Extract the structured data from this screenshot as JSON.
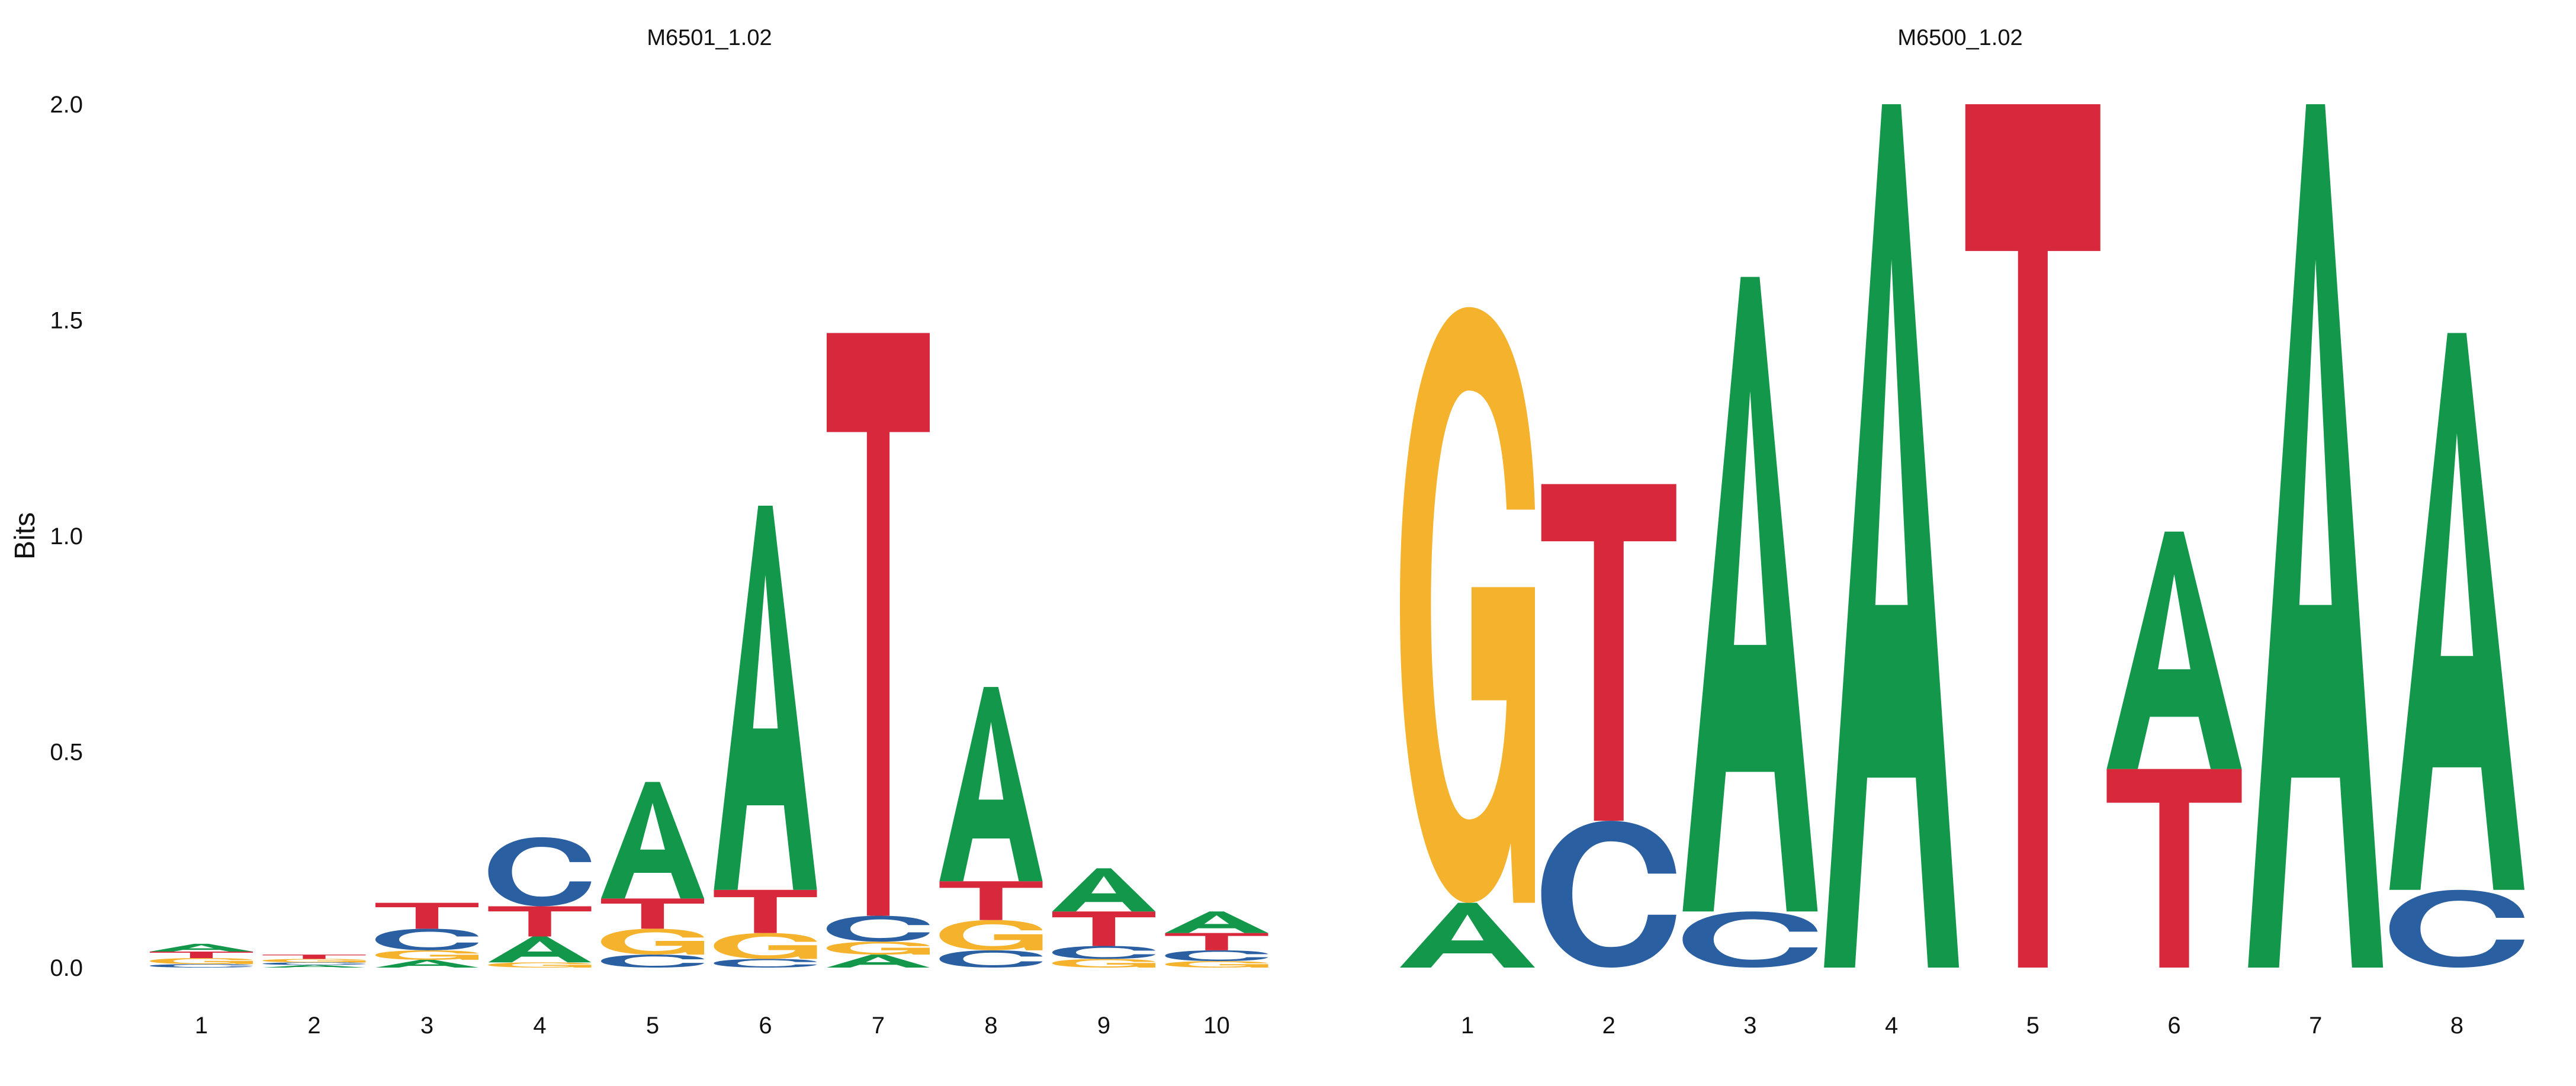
{
  "chart_data": [
    {
      "type": "sequence-logo",
      "title": "M6501_1.02",
      "ylabel": "Bits",
      "ylim": [
        0,
        2.0
      ],
      "yticks": [
        "0.0",
        "0.5",
        "1.0",
        "1.5",
        "2.0"
      ],
      "positions": [
        {
          "label": "1",
          "stack": [
            {
              "letter": "C",
              "bits": 0.008
            },
            {
              "letter": "G",
              "bits": 0.014
            },
            {
              "letter": "T",
              "bits": 0.015
            },
            {
              "letter": "A",
              "bits": 0.018
            }
          ]
        },
        {
          "label": "2",
          "stack": [
            {
              "letter": "A",
              "bits": 0.006
            },
            {
              "letter": "C",
              "bits": 0.006
            },
            {
              "letter": "G",
              "bits": 0.008
            },
            {
              "letter": "T",
              "bits": 0.01
            }
          ]
        },
        {
          "label": "3",
          "stack": [
            {
              "letter": "A",
              "bits": 0.018
            },
            {
              "letter": "G",
              "bits": 0.022
            },
            {
              "letter": "C",
              "bits": 0.05
            },
            {
              "letter": "T",
              "bits": 0.06
            }
          ]
        },
        {
          "label": "4",
          "stack": [
            {
              "letter": "G",
              "bits": 0.012
            },
            {
              "letter": "A",
              "bits": 0.06
            },
            {
              "letter": "T",
              "bits": 0.07
            },
            {
              "letter": "C",
              "bits": 0.16
            }
          ]
        },
        {
          "label": "5",
          "stack": [
            {
              "letter": "C",
              "bits": 0.03
            },
            {
              "letter": "G",
              "bits": 0.06
            },
            {
              "letter": "T",
              "bits": 0.07
            },
            {
              "letter": "A",
              "bits": 0.27
            }
          ]
        },
        {
          "label": "6",
          "stack": [
            {
              "letter": "C",
              "bits": 0.02
            },
            {
              "letter": "G",
              "bits": 0.06
            },
            {
              "letter": "T",
              "bits": 0.1
            },
            {
              "letter": "A",
              "bits": 0.89
            }
          ]
        },
        {
          "label": "7",
          "stack": [
            {
              "letter": "A",
              "bits": 0.03
            },
            {
              "letter": "G",
              "bits": 0.03
            },
            {
              "letter": "C",
              "bits": 0.06
            },
            {
              "letter": "T",
              "bits": 1.35
            }
          ]
        },
        {
          "label": "8",
          "stack": [
            {
              "letter": "C",
              "bits": 0.04
            },
            {
              "letter": "G",
              "bits": 0.07
            },
            {
              "letter": "T",
              "bits": 0.09
            },
            {
              "letter": "A",
              "bits": 0.45
            }
          ]
        },
        {
          "label": "9",
          "stack": [
            {
              "letter": "G",
              "bits": 0.02
            },
            {
              "letter": "C",
              "bits": 0.03
            },
            {
              "letter": "T",
              "bits": 0.08
            },
            {
              "letter": "A",
              "bits": 0.1
            }
          ]
        },
        {
          "label": "10",
          "stack": [
            {
              "letter": "G",
              "bits": 0.015
            },
            {
              "letter": "C",
              "bits": 0.025
            },
            {
              "letter": "T",
              "bits": 0.04
            },
            {
              "letter": "A",
              "bits": 0.05
            }
          ]
        }
      ]
    },
    {
      "type": "sequence-logo",
      "title": "M6500_1.02",
      "ylim": [
        0,
        2.0
      ],
      "positions": [
        {
          "label": "1",
          "stack": [
            {
              "letter": "A",
              "bits": 0.15
            },
            {
              "letter": "G",
              "bits": 1.38
            }
          ]
        },
        {
          "label": "2",
          "stack": [
            {
              "letter": "C",
              "bits": 0.34
            },
            {
              "letter": "T",
              "bits": 0.78
            }
          ]
        },
        {
          "label": "3",
          "stack": [
            {
              "letter": "C",
              "bits": 0.13
            },
            {
              "letter": "A",
              "bits": 1.47
            }
          ]
        },
        {
          "label": "4",
          "stack": [
            {
              "letter": "A",
              "bits": 2.0
            }
          ]
        },
        {
          "label": "5",
          "stack": [
            {
              "letter": "T",
              "bits": 2.0
            }
          ]
        },
        {
          "label": "6",
          "stack": [
            {
              "letter": "T",
              "bits": 0.46
            },
            {
              "letter": "A",
              "bits": 0.55
            }
          ]
        },
        {
          "label": "7",
          "stack": [
            {
              "letter": "A",
              "bits": 2.0
            }
          ]
        },
        {
          "label": "8",
          "stack": [
            {
              "letter": "C",
              "bits": 0.18
            },
            {
              "letter": "A",
              "bits": 1.29
            }
          ]
        }
      ]
    }
  ],
  "colors": {
    "A": "#13974a",
    "C": "#2a5fa2",
    "G": "#f5b22d",
    "T": "#d7283c",
    "text": "#111111"
  }
}
